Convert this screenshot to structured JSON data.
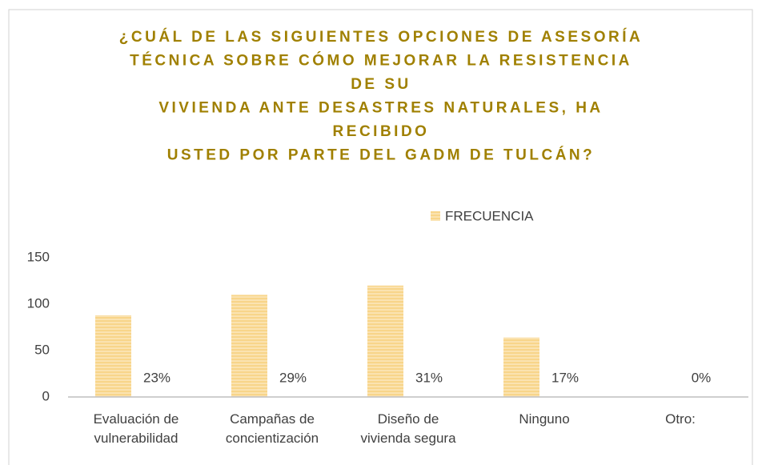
{
  "chart_data": {
    "type": "bar",
    "title": [
      "¿CUÁL DE LAS SIGUIENTES OPCIONES DE ASESORÍA",
      "TÉCNICA SOBRE CÓMO MEJORAR LA RESISTENCIA",
      "DE SU",
      "VIVIENDA ANTE DESASTRES NATURALES, HA",
      "RECIBIDO",
      "USTED POR PARTE DEL GADM DE TULCÁN?"
    ],
    "categories": [
      "Evaluación de vulnerabilidad",
      "Campañas de concientización",
      "Diseño de vivienda segura",
      "Ninguno",
      "Otro:"
    ],
    "series": [
      {
        "name": "FRECUENCIA",
        "color": "#f8d58a",
        "values": [
          88,
          110,
          120,
          64,
          0
        ]
      }
    ],
    "percent_labels": [
      "23%",
      "29%",
      "31%",
      "17%",
      "0%"
    ],
    "ylim": [
      0,
      150
    ],
    "yticks": [
      0,
      50,
      100,
      150
    ],
    "grid": false,
    "legend": "top"
  }
}
